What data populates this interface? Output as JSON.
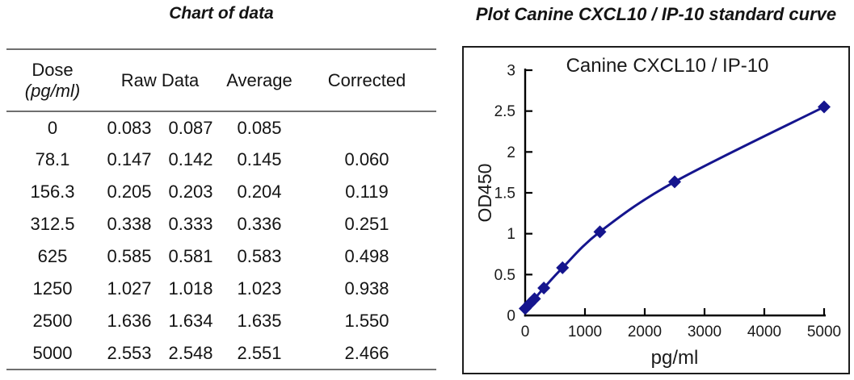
{
  "table": {
    "title": "Chart of data",
    "columns": {
      "dose_line1": "Dose",
      "dose_line2": "(pg/ml)",
      "raw": "Raw Data",
      "average": "Average",
      "corrected": "Corrected"
    },
    "rows": [
      {
        "dose": "0",
        "raw1": "0.083",
        "raw2": "0.087",
        "average": "0.085",
        "corrected": ""
      },
      {
        "dose": "78.1",
        "raw1": "0.147",
        "raw2": "0.142",
        "average": "0.145",
        "corrected": "0.060"
      },
      {
        "dose": "156.3",
        "raw1": "0.205",
        "raw2": "0.203",
        "average": "0.204",
        "corrected": "0.119"
      },
      {
        "dose": "312.5",
        "raw1": "0.338",
        "raw2": "0.333",
        "average": "0.336",
        "corrected": "0.251"
      },
      {
        "dose": "625",
        "raw1": "0.585",
        "raw2": "0.581",
        "average": "0.583",
        "corrected": "0.498"
      },
      {
        "dose": "1250",
        "raw1": "1.027",
        "raw2": "1.018",
        "average": "1.023",
        "corrected": "0.938"
      },
      {
        "dose": "2500",
        "raw1": "1.636",
        "raw2": "1.634",
        "average": "1.635",
        "corrected": "1.550"
      },
      {
        "dose": "5000",
        "raw1": "2.553",
        "raw2": "2.548",
        "average": "2.551",
        "corrected": "2.466"
      }
    ]
  },
  "plot": {
    "panel_title": "Plot Canine CXCL10 / IP-10 standard curve"
  },
  "chart_data": {
    "type": "line",
    "title": "Canine CXCL10 / IP-10",
    "x": [
      0,
      78.1,
      156.3,
      312.5,
      625,
      1250,
      2500,
      5000
    ],
    "y": [
      0.085,
      0.145,
      0.204,
      0.336,
      0.583,
      1.023,
      1.635,
      2.551
    ],
    "xlabel": "pg/ml",
    "ylabel": "OD450",
    "xlim": [
      0,
      5000
    ],
    "ylim": [
      0,
      3
    ],
    "xticks": [
      0,
      1000,
      2000,
      3000,
      4000,
      5000
    ],
    "yticks": [
      0,
      0.5,
      1,
      1.5,
      2,
      2.5,
      3
    ],
    "grid": false,
    "legend": "none",
    "smooth": true,
    "marker": "diamond",
    "line_color": "#15158e",
    "axis_color": "#000000",
    "text_color": "#1a1a1a"
  }
}
